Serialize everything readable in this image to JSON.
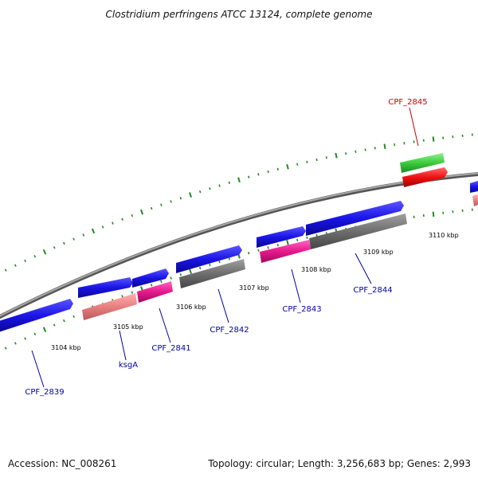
{
  "title": "Clostridium perfringens ATCC 13124, complete genome",
  "footer": {
    "accession": "Accession: NC_008261",
    "topology": "Topology: circular; Length: 3,256,683 bp; Genes: 2,993"
  },
  "ticks": [
    {
      "label": "3104 kbp"
    },
    {
      "label": "3105 kbp"
    },
    {
      "label": "3106 kbp"
    },
    {
      "label": "3107 kbp"
    },
    {
      "label": "3108 kbp"
    },
    {
      "label": "3109 kbp"
    },
    {
      "label": "3110 kbp"
    }
  ],
  "gene_labels": [
    {
      "id": "CPF_2839",
      "label": "CPF_2839",
      "color": "#0000aa"
    },
    {
      "id": "ksgA",
      "label": "ksgA",
      "color": "#0000aa"
    },
    {
      "id": "CPF_2841",
      "label": "CPF_2841",
      "color": "#0000aa"
    },
    {
      "id": "CPF_2842",
      "label": "CPF_2842",
      "color": "#0000aa"
    },
    {
      "id": "CPF_2843",
      "label": "CPF_2843",
      "color": "#0000aa"
    },
    {
      "id": "CPF_2844",
      "label": "CPF_2844",
      "color": "#0000aa"
    },
    {
      "id": "CPF_2845",
      "label": "CPF_2845",
      "color": "#cc0000"
    }
  ],
  "colors": {
    "backbone": "#8c8c8c",
    "tick_marks": "#228b22",
    "cds_blue": "#1a14e6",
    "gene_gray": "#6e6e6e",
    "gene_pink": "#e6188c",
    "gene_salmon": "#e88080",
    "gene_green": "#3dcc3d",
    "gene_red": "#ee1111"
  }
}
